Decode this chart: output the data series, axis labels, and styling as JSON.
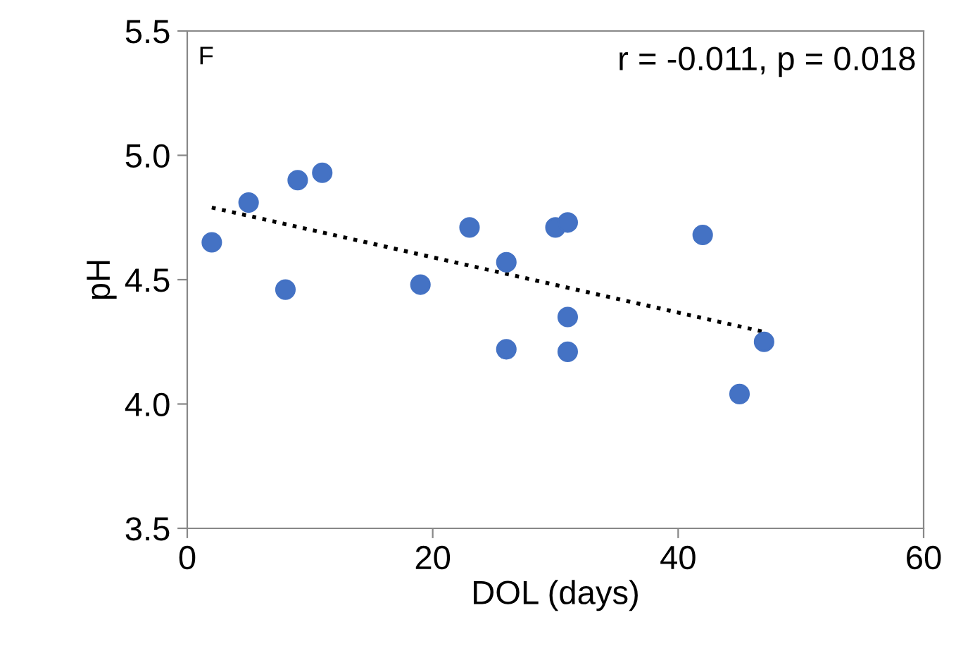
{
  "chart_data": {
    "type": "scatter",
    "xlabel": "DOL (days)",
    "ylabel": "pH",
    "xlim": [
      0,
      60
    ],
    "xticks": [
      0,
      20,
      40,
      60
    ],
    "ylim": [
      3.5,
      5.5
    ],
    "yticks": [
      {
        "value": 3.5,
        "label": "3.5"
      },
      {
        "value": 4.0,
        "label": "4.0"
      },
      {
        "value": 4.5,
        "label": "4.5"
      },
      {
        "value": 5.0,
        "label": "5.0"
      },
      {
        "value": 5.5,
        "label": "5.5"
      }
    ],
    "grid": false,
    "legend": false,
    "annotations": [
      "F",
      "r = -0.011, p = 0.018"
    ],
    "series": [
      {
        "color": "#4472c4",
        "marker": "circle",
        "x": [
          2,
          5,
          9,
          11,
          8,
          19,
          23,
          26,
          26,
          30,
          31,
          31,
          31,
          42,
          45,
          47
        ],
        "values": [
          4.65,
          4.81,
          4.9,
          4.93,
          4.46,
          4.48,
          4.71,
          4.57,
          4.22,
          4.71,
          4.73,
          4.35,
          4.21,
          4.68,
          4.04,
          4.25
        ]
      },
      {
        "type": "line",
        "color": "#000000",
        "marker": "none",
        "line_style": "dotted",
        "x": [
          2,
          47
        ],
        "values": [
          4.79,
          4.29
        ]
      }
    ]
  }
}
